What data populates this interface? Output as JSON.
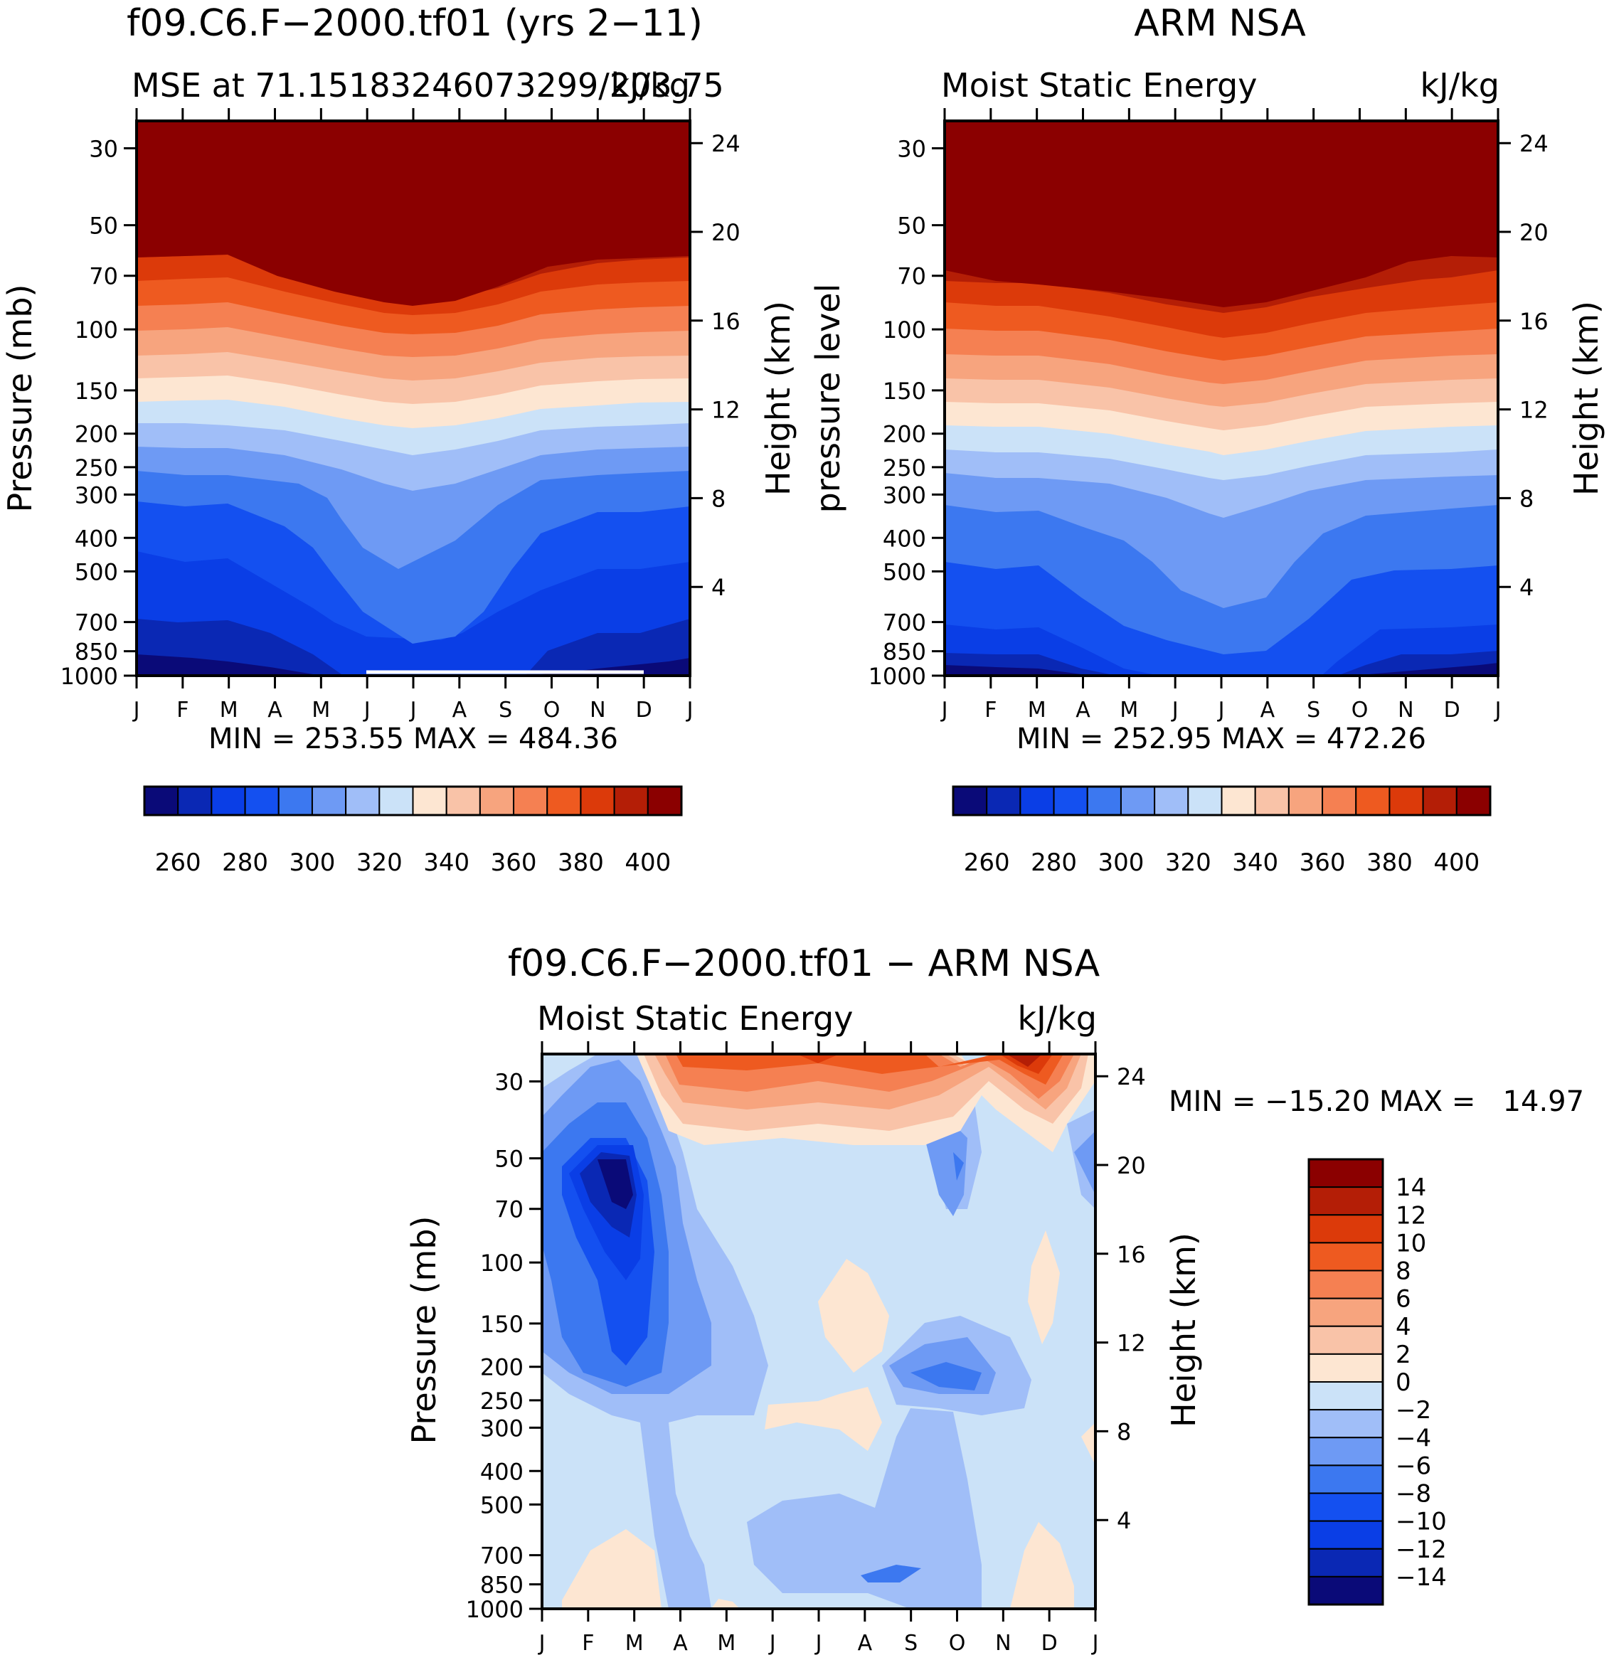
{
  "figure": {
    "top_left": {
      "title": "f09.C6.F−2000.tf01 (yrs 2−11)",
      "subtitle_left": "MSE at 71.15183246073299/203.75",
      "subtitle_right": "kJ/kg",
      "ylabel_left": "Pressure (mb)",
      "ylabel_right": "Height (km)",
      "minmax": "MIN = 253.55 MAX = 484.36"
    },
    "top_right": {
      "title": "ARM NSA",
      "subtitle_left": "Moist Static Energy",
      "subtitle_right": "kJ/kg",
      "ylabel_left": "pressure level",
      "ylabel_right": "Height (km)",
      "minmax": "MIN = 252.95 MAX = 472.26"
    },
    "bottom": {
      "title": "f09.C6.F−2000.tf01 − ARM NSA",
      "subtitle_left": "Moist Static Energy",
      "subtitle_right": "kJ/kg",
      "ylabel_left": "Pressure (mb)",
      "ylabel_right": "Height (km)",
      "minmax": "MIN = −15.20 MAX =   14.97"
    }
  },
  "chart_data": [
    {
      "type": "heatmap",
      "title": "f09.C6.F−2000.tf01 (yrs 2−11)",
      "subtitle": "MSE at 71.15183246073299/203.75",
      "units": "kJ/kg",
      "x_ticks": [
        "J",
        "F",
        "M",
        "A",
        "M",
        "J",
        "J",
        "A",
        "S",
        "O",
        "N",
        "D",
        "J"
      ],
      "y_ticks": [
        30,
        50,
        70,
        100,
        150,
        200,
        250,
        300,
        400,
        500,
        700,
        850,
        1000
      ],
      "y2_ticks": [
        24,
        20,
        16,
        12,
        8,
        4
      ],
      "ylabel": "Pressure (mb)",
      "y2label": "Height (km)",
      "ylim": [
        1000,
        25
      ],
      "y2lim": [
        0,
        25
      ],
      "min": 253.55,
      "max": 484.36,
      "colorbar_levels": [
        260,
        270,
        280,
        290,
        300,
        310,
        320,
        330,
        340,
        350,
        360,
        370,
        380,
        390,
        400
      ],
      "colorbar_labels": [
        "260",
        "280",
        "300",
        "320",
        "340",
        "360",
        "380",
        "400"
      ],
      "colorbar_colors": [
        "#0a0a78",
        "#0a28b4",
        "#0a3ee6",
        "#1450f0",
        "#3c78f0",
        "#6e9af4",
        "#a0bef8",
        "#cbe2f8",
        "#fde6d2",
        "#f9c3a8",
        "#f7a47e",
        "#f58052",
        "#ee5a20",
        "#dc3a0a",
        "#b41e06",
        "#8b0000"
      ]
    },
    {
      "type": "heatmap",
      "title": "ARM NSA",
      "subtitle": "Moist Static Energy",
      "units": "kJ/kg",
      "x_ticks": [
        "J",
        "F",
        "M",
        "A",
        "M",
        "J",
        "J",
        "A",
        "S",
        "O",
        "N",
        "D",
        "J"
      ],
      "y_ticks": [
        30,
        50,
        70,
        100,
        150,
        200,
        250,
        300,
        400,
        500,
        700,
        850,
        1000
      ],
      "y2_ticks": [
        24,
        20,
        16,
        12,
        8,
        4
      ],
      "ylabel": "pressure level",
      "y2label": "Height (km)",
      "ylim": [
        1000,
        25
      ],
      "y2lim": [
        0,
        25
      ],
      "min": 252.95,
      "max": 472.26,
      "colorbar_levels": [
        260,
        270,
        280,
        290,
        300,
        310,
        320,
        330,
        340,
        350,
        360,
        370,
        380,
        390,
        400
      ],
      "colorbar_labels": [
        "260",
        "280",
        "300",
        "320",
        "340",
        "360",
        "380",
        "400"
      ],
      "colorbar_colors": [
        "#0a0a78",
        "#0a28b4",
        "#0a3ee6",
        "#1450f0",
        "#3c78f0",
        "#6e9af4",
        "#a0bef8",
        "#cbe2f8",
        "#fde6d2",
        "#f9c3a8",
        "#f7a47e",
        "#f58052",
        "#ee5a20",
        "#dc3a0a",
        "#b41e06",
        "#8b0000"
      ]
    },
    {
      "type": "heatmap",
      "title": "f09.C6.F−2000.tf01 − ARM NSA",
      "subtitle": "Moist Static Energy",
      "units": "kJ/kg",
      "x_ticks": [
        "J",
        "F",
        "M",
        "A",
        "M",
        "J",
        "J",
        "A",
        "S",
        "O",
        "N",
        "D",
        "J"
      ],
      "y_ticks": [
        30,
        50,
        70,
        100,
        150,
        200,
        250,
        300,
        400,
        500,
        700,
        850,
        1000
      ],
      "y2_ticks": [
        24,
        20,
        16,
        12,
        8,
        4
      ],
      "ylabel": "Pressure (mb)",
      "y2label": "Height (km)",
      "ylim": [
        1000,
        25
      ],
      "y2lim": [
        0,
        25
      ],
      "min": -15.2,
      "max": 14.97,
      "colorbar_levels": [
        -14,
        -12,
        -10,
        -8,
        -6,
        -4,
        -2,
        0,
        2,
        4,
        6,
        8,
        10,
        12,
        14
      ],
      "colorbar_labels": [
        "14",
        "12",
        "10",
        "8",
        "6",
        "4",
        "2",
        "0",
        "−2",
        "−4",
        "−6",
        "−8",
        "−10",
        "−12",
        "−14"
      ],
      "colorbar_colors": [
        "#0a0a78",
        "#0a28b4",
        "#0a3ee6",
        "#1450f0",
        "#3c78f0",
        "#6e9af4",
        "#a0bef8",
        "#cbe2f8",
        "#fde6d2",
        "#f9c3a8",
        "#f7a47e",
        "#f58052",
        "#ee5a20",
        "#dc3a0a",
        "#b41e06",
        "#8b0000"
      ]
    }
  ]
}
